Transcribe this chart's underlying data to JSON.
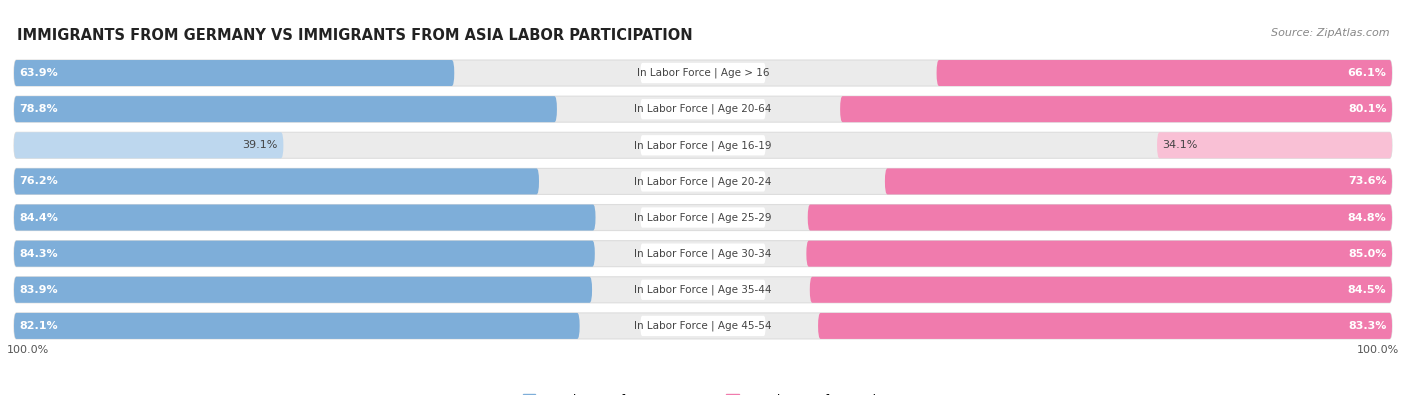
{
  "title": "IMMIGRANTS FROM GERMANY VS IMMIGRANTS FROM ASIA LABOR PARTICIPATION",
  "source": "Source: ZipAtlas.com",
  "categories": [
    "In Labor Force | Age > 16",
    "In Labor Force | Age 20-64",
    "In Labor Force | Age 16-19",
    "In Labor Force | Age 20-24",
    "In Labor Force | Age 25-29",
    "In Labor Force | Age 30-34",
    "In Labor Force | Age 35-44",
    "In Labor Force | Age 45-54"
  ],
  "germany_values": [
    63.9,
    78.8,
    39.1,
    76.2,
    84.4,
    84.3,
    83.9,
    82.1
  ],
  "asia_values": [
    66.1,
    80.1,
    34.1,
    73.6,
    84.8,
    85.0,
    84.5,
    83.3
  ],
  "germany_color": "#7EAED9",
  "germany_color_light": "#BDD7EE",
  "asia_color": "#F07BAD",
  "asia_color_light": "#F9C0D5",
  "row_bg_color": "#EBEBEB",
  "center_label_bg": "#FFFFFF",
  "label_color_dark": "#444444",
  "label_color_white": "#FFFFFF",
  "max_value": 100.0,
  "legend_germany": "Immigrants from Germany",
  "legend_asia": "Immigrants from Asia",
  "title_fontsize": 10.5,
  "source_fontsize": 8,
  "bar_label_fontsize": 8,
  "category_fontsize": 7.5,
  "legend_fontsize": 9,
  "axis_label_fontsize": 8
}
